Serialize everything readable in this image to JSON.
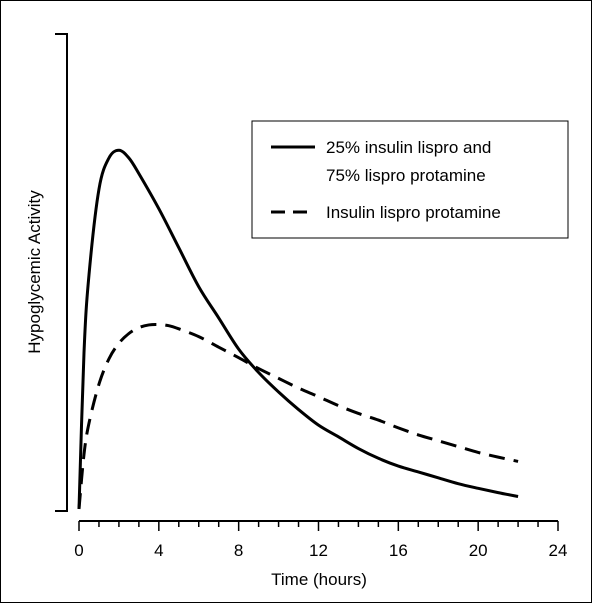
{
  "chart_data": {
    "type": "line",
    "xlabel": "Time (hours)",
    "ylabel": "Hypoglycemic Activity",
    "xlim": [
      0,
      24
    ],
    "xticks": [
      0,
      4,
      8,
      12,
      16,
      20,
      24
    ],
    "xticks_minor_step": 1,
    "ylim": [
      0,
      100
    ],
    "y_tick_labels": "none",
    "grid": false,
    "legend_position": "top-right",
    "series": [
      {
        "name": "25% insulin lispro and 75% lispro protamine",
        "name_lines": [
          "25% insulin lispro and",
          "75% lispro protamine"
        ],
        "style": "solid",
        "color": "#000000",
        "x": [
          0,
          0.25,
          0.5,
          1,
          1.5,
          2,
          2.5,
          3,
          4,
          5,
          6,
          7,
          8,
          9,
          10,
          11,
          12,
          13,
          14,
          15,
          16,
          17,
          18,
          19,
          20,
          21,
          22
        ],
        "y": [
          0,
          40,
          60,
          82,
          90,
          92,
          90,
          86,
          77,
          67,
          57,
          49,
          41,
          35,
          30,
          25.5,
          21.5,
          18.5,
          15.5,
          13,
          11,
          9.5,
          8,
          6.5,
          5.3,
          4.2,
          3.2
        ]
      },
      {
        "name": "Insulin lispro protamine",
        "style": "dashed",
        "color": "#000000",
        "x": [
          0,
          0.25,
          0.5,
          1,
          1.5,
          2,
          2.5,
          3,
          3.5,
          4,
          4.5,
          5,
          6,
          7,
          8,
          9,
          10,
          11,
          12,
          13,
          14,
          15,
          16,
          17,
          18,
          19,
          20,
          21,
          22
        ],
        "y": [
          0,
          14,
          22,
          32,
          38.5,
          42.5,
          45,
          46.5,
          47.2,
          47.3,
          47,
          46.2,
          44.2,
          41.5,
          38.8,
          36,
          33.5,
          31,
          28.8,
          26.5,
          24.5,
          22.8,
          20.8,
          19,
          17.5,
          16,
          14.5,
          13.3,
          12.2
        ]
      }
    ]
  }
}
